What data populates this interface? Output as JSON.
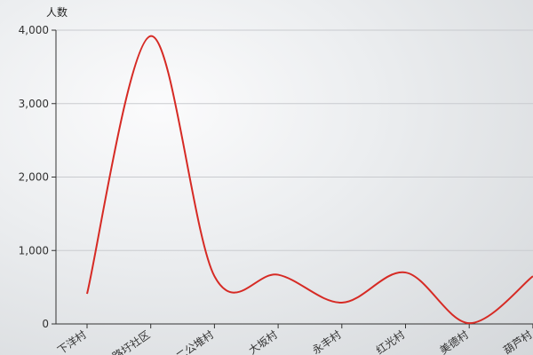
{
  "chart_data": {
    "type": "line",
    "title": "",
    "xlabel": "",
    "ylabel": "人数",
    "categories": [
      "下洋村",
      "路圩社区",
      "二公堆村",
      "大坂村",
      "永丰村",
      "红光村",
      "美德村",
      "葫芦村"
    ],
    "series": [
      {
        "values": [
          410,
          3920,
          650,
          670,
          290,
          700,
          10,
          650
        ],
        "color": "#d62a24"
      }
    ],
    "ylim": [
      0,
      4000
    ],
    "yticks": [
      0,
      1000,
      2000,
      3000,
      4000
    ],
    "ytick_labels": [
      "0",
      "1,000",
      "2,000",
      "3,000",
      "4,000"
    ],
    "grid": true,
    "smooth": true,
    "legend": "none"
  }
}
